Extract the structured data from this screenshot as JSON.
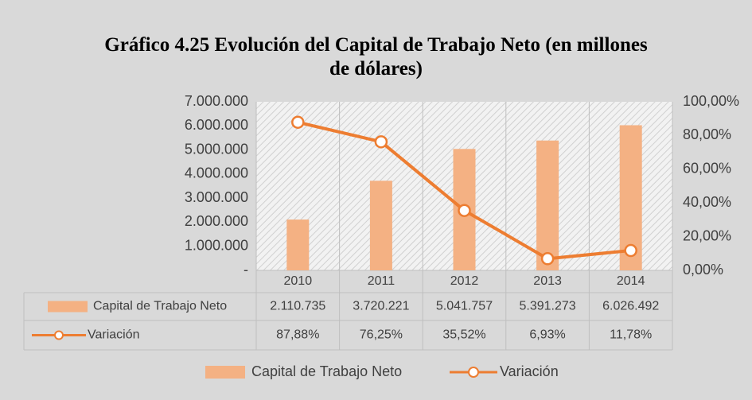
{
  "chart_data": {
    "type": "bar",
    "title": "Gráfico 4.25 Evolución del Capital de Trabajo Neto (en millones de dólares)",
    "categories": [
      "2010",
      "2011",
      "2012",
      "2013",
      "2014"
    ],
    "series": [
      {
        "name": "Capital de Trabajo Neto",
        "type": "bar",
        "color": "#f4b183",
        "values": [
          2110735,
          3720221,
          5041757,
          5391273,
          6026492
        ],
        "value_labels": [
          "2.110.735",
          "3.720.221",
          "5.041.757",
          "5.391.273",
          "6.026.492"
        ]
      },
      {
        "name": "Variación",
        "type": "line",
        "axis": "y2",
        "color": "#ed7d31",
        "values": [
          87.88,
          76.25,
          35.52,
          6.93,
          11.78
        ],
        "value_labels": [
          "87,88%",
          "76,25%",
          "35,52%",
          "6,93%",
          "11,78%"
        ]
      }
    ],
    "ylim": [
      0,
      7000000
    ],
    "yticks": [
      {
        "value": 0,
        "label": "-"
      },
      {
        "value": 1000000,
        "label": "1.000.000"
      },
      {
        "value": 2000000,
        "label": "2.000.000"
      },
      {
        "value": 3000000,
        "label": "3.000.000"
      },
      {
        "value": 4000000,
        "label": "4.000.000"
      },
      {
        "value": 5000000,
        "label": "5.000.000"
      },
      {
        "value": 6000000,
        "label": "6.000.000"
      },
      {
        "value": 7000000,
        "label": "7.000.000"
      }
    ],
    "y2lim": [
      0,
      100
    ],
    "y2ticks": [
      {
        "value": 0,
        "label": "0,00%"
      },
      {
        "value": 20,
        "label": "20,00%"
      },
      {
        "value": 40,
        "label": "40,00%"
      },
      {
        "value": 60,
        "label": "60,00%"
      },
      {
        "value": 80,
        "label": "80,00%"
      },
      {
        "value": 100,
        "label": "100,00%"
      }
    ],
    "data_table": true,
    "legend": "bottom"
  }
}
